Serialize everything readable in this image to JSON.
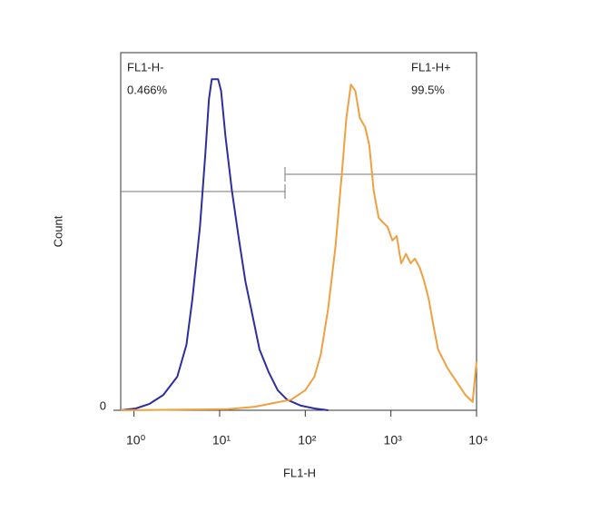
{
  "chart_data": {
    "type": "histogram-overlay",
    "x_label": "FL1-H",
    "y_label": "Count",
    "x_scale": "log",
    "xlim": [
      0.7,
      10000
    ],
    "xticks": [
      {
        "value": 1,
        "label": "10⁰"
      },
      {
        "value": 10,
        "label": "10¹"
      },
      {
        "value": 100,
        "label": "10²"
      },
      {
        "value": 1000,
        "label": "10³"
      },
      {
        "value": 10000,
        "label": "10⁴"
      }
    ],
    "ylim": [
      0,
      100
    ],
    "yticks": [
      0
    ],
    "series": [
      {
        "color": "#2e2e9e",
        "x": [
          0.7,
          1.05,
          1.52,
          2.2,
          3.2,
          4.1,
          4.8,
          5.9,
          6.8,
          7.5,
          8.1,
          9.6,
          10.4,
          11.7,
          13.9,
          16.6,
          20,
          24.5,
          29.2,
          37.3,
          47.7,
          61,
          89,
          128,
          186
        ],
        "values": [
          0,
          0.5,
          1.8,
          4.3,
          9.4,
          18.3,
          31,
          51.3,
          71.6,
          87,
          92.6,
          92.6,
          89.3,
          76.6,
          61.4,
          48.7,
          36,
          25.9,
          17,
          10.7,
          5.6,
          3,
          1.3,
          0.5,
          0
        ]
      },
      {
        "color": "#f0a040",
        "x": [
          0.7,
          12.3,
          25.8,
          42.2,
          69,
          100,
          128,
          152,
          185,
          226,
          268,
          302,
          341,
          385,
          435,
          500,
          560,
          630,
          720,
          810,
          915,
          1040,
          1170,
          1320,
          1500,
          1700,
          1900,
          2180,
          2450,
          2770,
          3150,
          3550,
          4550,
          5800,
          7400,
          9000,
          10000
        ],
        "values": [
          0,
          0.3,
          1,
          2,
          3,
          5.6,
          9.4,
          15.7,
          28.4,
          46,
          66.5,
          81.7,
          91.1,
          89.3,
          81.7,
          79.2,
          74,
          61.4,
          53.8,
          52.5,
          51.3,
          47.5,
          48.7,
          41.1,
          43.7,
          41.1,
          42.4,
          39.8,
          36,
          31,
          23.4,
          17,
          11.9,
          8.1,
          4.3,
          2.3,
          13.7
        ]
      }
    ],
    "gates": [
      {
        "name": "FL1-H-",
        "percent": "0.466%",
        "range": [
          0.7,
          58
        ]
      },
      {
        "name": "FL1-H+",
        "percent": "99.5%",
        "range": [
          58,
          10000
        ]
      }
    ]
  }
}
